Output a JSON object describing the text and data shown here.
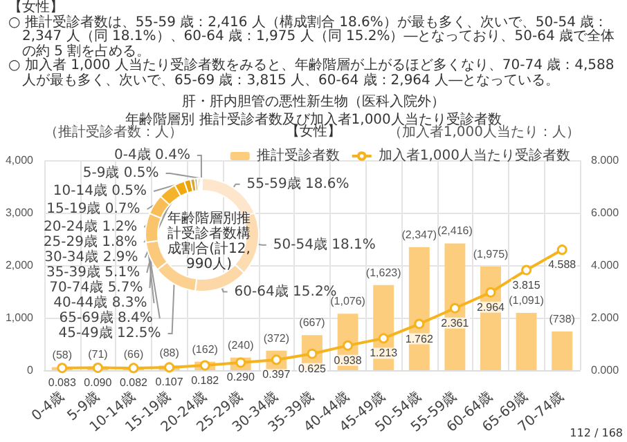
{
  "chart_data": [
    {
      "type": "bar",
      "title": "肝・肝内胆管の悪性新生物（医科入院外）",
      "subtitle": "年齢階層別 推計受診者数及び加入者1,000人当たり受診者数",
      "ylabel": "（推計受診者数：人）",
      "y2label": "（加入者1,000人当たり：人）",
      "annotations": [
        "【女性】",
        "○ 推計受診者数は、55-59 歳：2,416 人（構成割合 18.6%）が最も多く、次いで、50-54 歳：2,347 人（同 18.1%）、60-64 歳：1,975 人（同 15.2%）―となっており、50-64 歳で全体の約 5 割を占める。",
        "○ 加入者 1,000 人当たり受診者数をみると、年齢階層が上がるほど多くなり、70-74 歳：4,588 人が最も多く、次いで、65-69 歳：3,815 人、60-64 歳：2,964 人―となっている。",
        "【女性】",
        "112 / 168"
      ],
      "categories": [
        "0-4歳",
        "5-9歳",
        "10-14歳",
        "15-19歳",
        "20-24歳",
        "25-29歳",
        "30-34歳",
        "35-39歳",
        "40-44歳",
        "45-49歳",
        "50-54歳",
        "55-59歳",
        "60-64歳",
        "65-69歳",
        "70-74歳"
      ],
      "series": [
        {
          "name": "推計受診者数",
          "type": "bar",
          "color": "#fdcd7e",
          "values": [
            58,
            71,
            66,
            88,
            162,
            240,
            372,
            667,
            1076,
            1623,
            2347,
            2416,
            1975,
            1091,
            738
          ],
          "value_labels": [
            "(58)",
            "(71)",
            "(66)",
            "(88)",
            "(162)",
            "(240)",
            "(372)",
            "(667)",
            "(1,076)",
            "(1,623)",
            "(2,347)",
            "(2,416)",
            "(1,975)",
            "(1,091)",
            "(738)"
          ]
        },
        {
          "name": "加入者1,000人当たり受診者数",
          "type": "line",
          "axis": "y2",
          "color": "#f5b41e",
          "values": [
            0.083,
            0.09,
            0.082,
            0.107,
            0.182,
            0.29,
            0.397,
            0.625,
            0.938,
            1.213,
            1.762,
            2.361,
            2.964,
            3.815,
            4.588
          ],
          "value_labels": [
            "0.083",
            "0.090",
            "0.082",
            "0.107",
            "0.182",
            "0.290",
            "0.397",
            "0.625",
            "0.938",
            "1.213",
            "1.762",
            "2.361",
            "2.964",
            "3.815",
            "4.588"
          ]
        }
      ],
      "ylim": [
        0,
        4000
      ],
      "yticks": [
        0,
        {
          "value": 1000,
          "label": "1,000"
        },
        {
          "value": 2000,
          "label": "2,000"
        },
        {
          "value": 3000,
          "label": "3,000"
        },
        {
          "value": 4000,
          "label": "4,000"
        }
      ],
      "y2lim": [
        0,
        8
      ],
      "y2ticks": [
        {
          "value": 0,
          "label": "0.000"
        },
        {
          "value": 2,
          "label": "2.000"
        },
        {
          "value": 4,
          "label": "4.000"
        },
        {
          "value": 6,
          "label": "6.000"
        },
        {
          "value": 8,
          "label": "8.000"
        }
      ],
      "grid": true,
      "legend": "top",
      "marker": "circle",
      "line_style": "solid"
    },
    {
      "type": "donut",
      "title": "年齢階層別推計受診者数構成割合(計12,990人)",
      "categories": [
        "55-59歳",
        "50-54歳",
        "60-64歳",
        "45-49歳",
        "65-69歳",
        "40-44歳",
        "70-74歳",
        "35-39歳",
        "30-34歳",
        "25-29歳",
        "20-24歳",
        "15-19歳",
        "10-14歳",
        "5-9歳",
        "0-4歳"
      ],
      "values": [
        18.6,
        18.1,
        15.2,
        12.5,
        8.4,
        8.3,
        5.7,
        5.1,
        2.9,
        1.8,
        1.2,
        0.7,
        0.5,
        0.5,
        0.4
      ],
      "value_labels": [
        "18.6%",
        "18.1%",
        "15.2%",
        "12.5%",
        "8.4%",
        "8.3%",
        "5.7%",
        "5.1%",
        "2.9%",
        "1.8%",
        "1.2%",
        "0.7%",
        "0.5%",
        "0.5%",
        "0.4%"
      ],
      "colors": [
        "#fde6cb",
        "#fddcb2",
        "#fdd8a6",
        "#fcd08f",
        "#fbc97c",
        "#fac46c",
        "#f9bd58",
        "#f5b32b",
        "#f0aa10",
        "#e8a40a",
        "#d9a53a",
        "#c7a14e",
        "#bba26a",
        "#c9b78f",
        "#d8cdb3"
      ]
    }
  ]
}
